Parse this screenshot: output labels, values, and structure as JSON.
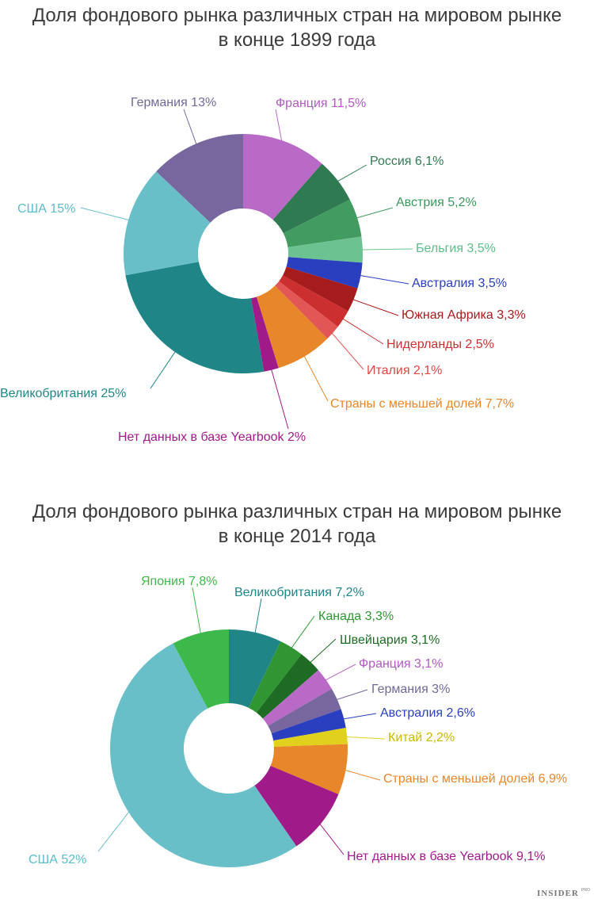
{
  "chart_data": [
    {
      "type": "pie",
      "title": "Доля фондового рынка различных стран на мировом рынке",
      "subtitle": "в конце 1899 года",
      "slices": [
        {
          "label": "Франция 11,5%",
          "value": 11.5,
          "color": "#b86ac6",
          "text_color": "#b05ac0"
        },
        {
          "label": "Россия 6,1%",
          "value": 6.1,
          "color": "#2f7a51",
          "text_color": "#2f7a51"
        },
        {
          "label": "Австрия 5,2%",
          "value": 5.2,
          "color": "#429b60",
          "text_color": "#3c9a5e"
        },
        {
          "label": "Бельгия 3,5%",
          "value": 3.5,
          "color": "#6cc290",
          "text_color": "#5dbd88"
        },
        {
          "label": "Австралия 3,5%",
          "value": 3.5,
          "color": "#2a3fbf",
          "text_color": "#2a3fbf"
        },
        {
          "label": "Южная Африка 3,3%",
          "value": 3.3,
          "color": "#a61c1c",
          "text_color": "#a61c1c"
        },
        {
          "label": "Нидерланды 2,5%",
          "value": 2.5,
          "color": "#cc2f2f",
          "text_color": "#cc2f2f"
        },
        {
          "label": "Италия 2,1%",
          "value": 2.1,
          "color": "#e25656",
          "text_color": "#e04646"
        },
        {
          "label": "Страны с меньшей долей 7,7%",
          "value": 7.7,
          "color": "#e8862a",
          "text_color": "#e8862a"
        },
        {
          "label": "Нет данных в базе Yearbook 2%",
          "value": 2,
          "color": "#a01a8a",
          "text_color": "#a01a8a"
        },
        {
          "label": "Великобритания 25%",
          "value": 25,
          "color": "#1f8587",
          "text_color": "#1f8587"
        },
        {
          "label": "США 15%",
          "value": 15,
          "color": "#69bfc8",
          "text_color": "#5bbdc9"
        },
        {
          "label": "Германия 13%",
          "value": 13,
          "color": "#78679e",
          "text_color": "#6f6a9a"
        }
      ]
    },
    {
      "type": "pie",
      "title": "Доля фондового рынка различных стран на мировом рынке",
      "subtitle": "в конце 2014 года",
      "slices": [
        {
          "label": "Великобритания 7,2%",
          "value": 7.2,
          "color": "#1f8587",
          "text_color": "#1f8587"
        },
        {
          "label": "Канада 3,3%",
          "value": 3.3,
          "color": "#2f9632",
          "text_color": "#2f9632"
        },
        {
          "label": "Швейцария 3,1%",
          "value": 3.1,
          "color": "#1e6b24",
          "text_color": "#1e6b24"
        },
        {
          "label": "Франция 3,1%",
          "value": 3.1,
          "color": "#b86ac6",
          "text_color": "#b05ac0"
        },
        {
          "label": "Германия 3%",
          "value": 3,
          "color": "#78679e",
          "text_color": "#6f6a9a"
        },
        {
          "label": "Австралия 2,6%",
          "value": 2.6,
          "color": "#2a3fbf",
          "text_color": "#2a3fbf"
        },
        {
          "label": "Китай 2,2%",
          "value": 2.2,
          "color": "#e0d21c",
          "text_color": "#c9b800"
        },
        {
          "label": "Страны с меньшей долей 6,9%",
          "value": 6.9,
          "color": "#e8862a",
          "text_color": "#e8862a"
        },
        {
          "label": "Нет данных в базе Yearbook 9,1%",
          "value": 9.1,
          "color": "#a01a8a",
          "text_color": "#a01a8a"
        },
        {
          "label": "США 52%",
          "value": 52,
          "color": "#69bfc8",
          "text_color": "#5bbdc9"
        },
        {
          "label": "Япония 7,8%",
          "value": 7.8,
          "color": "#3db84a",
          "text_color": "#3db84a"
        }
      ]
    }
  ],
  "branding": {
    "logo": "INSIDER",
    "logo_sup": "PRO"
  }
}
